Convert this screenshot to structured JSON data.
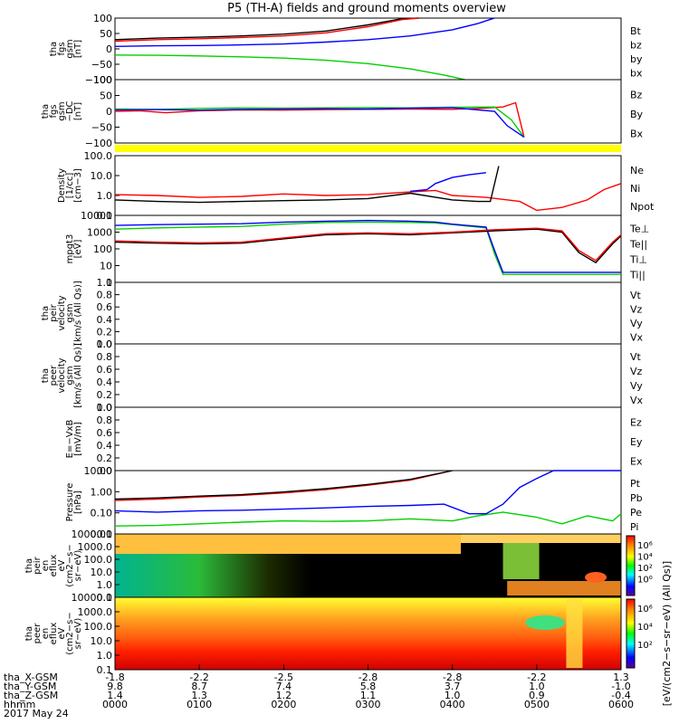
{
  "title": "P5 (TH-A) fields and ground moments overview",
  "colors": {
    "black": "#000000",
    "red": "#ff0000",
    "green": "#00d000",
    "blue": "#0000ff",
    "yellow": "#ffff00"
  },
  "chart_data": {
    "type": "line",
    "x_axis": {
      "ticks": [
        "0000",
        "0100",
        "0200",
        "0300",
        "0400",
        "0500",
        "0600"
      ],
      "rows": [
        {
          "label": "tha_X-GSM",
          "values": [
            "-1.8",
            "-2.2",
            "-2.5",
            "-2.8",
            "-2.8",
            "-2.2",
            "1.3"
          ]
        },
        {
          "label": "tha_Y-GSM",
          "values": [
            "9.8",
            "8.7",
            "7.4",
            "5.8",
            "3.7",
            "1.0",
            "-1.0"
          ]
        },
        {
          "label": "tha_Z-GSM",
          "values": [
            "1.4",
            "1.3",
            "1.2",
            "1.1",
            "1.0",
            "0.9",
            "-0.4"
          ]
        },
        {
          "label": "hhmm",
          "values": [
            "0000",
            "0100",
            "0200",
            "0300",
            "0400",
            "0500",
            "0600"
          ]
        }
      ],
      "date": "2017 May 24"
    },
    "panels": [
      {
        "id": "fgs",
        "ylabel": [
          "tha",
          "fgs",
          "gsm",
          "[nT]"
        ],
        "yticks": [
          "100",
          "50",
          "0",
          "−50",
          "−100"
        ],
        "legend": [
          "Bt",
          "bz",
          "by",
          "bx"
        ]
      },
      {
        "id": "fgs_dc",
        "ylabel": [
          "tha",
          "fgs",
          "gsm",
          "−DC",
          "[nT]"
        ],
        "yticks": [
          "100",
          "50",
          "0",
          "−50",
          "−100"
        ],
        "legend": [
          "Bz",
          "By",
          "Bx"
        ]
      },
      {
        "id": "density",
        "ylabel": [
          "Density",
          "[1/cc]",
          "[cm−3]"
        ],
        "yticks": [
          "100.0",
          "10.0",
          "1.0",
          "0.1"
        ],
        "legend": [
          "Ne",
          "Ni",
          "Npot"
        ]
      },
      {
        "id": "temp",
        "ylabel": [
          "mpgt3",
          "[eV]"
        ],
        "yticks": [
          "10000",
          "1000",
          "100",
          "10",
          "1"
        ],
        "legend": [
          "Te⊥",
          "Te||",
          "Ti⊥",
          "Ti||"
        ]
      },
      {
        "id": "peir_vel",
        "ylabel": [
          "tha",
          "peir",
          "velocity",
          "gsm",
          "[km/s (All Qs)]"
        ],
        "yticks": [
          "1.0",
          "0.8",
          "0.6",
          "0.4",
          "0.2",
          "0.0"
        ],
        "legend": [
          "Vt",
          "Vz",
          "Vy",
          "Vx"
        ]
      },
      {
        "id": "peer_vel",
        "ylabel": [
          "tha",
          "peer",
          "velocity",
          "gsm",
          "[km/s (All Qs)]"
        ],
        "yticks": [
          "1.0",
          "0.8",
          "0.6",
          "0.4",
          "0.2",
          "0.0"
        ],
        "legend": [
          "Vt",
          "Vz",
          "Vy",
          "Vx"
        ]
      },
      {
        "id": "efield",
        "ylabel": [
          "E=−VxB",
          "[mV/m]"
        ],
        "yticks": [
          "1.0",
          "0.8",
          "0.6",
          "0.4",
          "0.2",
          "0.0"
        ],
        "legend": [
          "Ez",
          "Ey",
          "Ex"
        ]
      },
      {
        "id": "pressure",
        "ylabel": [
          "Pressure",
          "[nPa]"
        ],
        "yticks": [
          "10.00",
          "1.00",
          "0.10",
          "0.01"
        ],
        "legend": [
          "Pt",
          "Pb",
          "Pe",
          "Pi"
        ]
      },
      {
        "id": "peir_spec",
        "ylabel": [
          "tha",
          "peir",
          "en",
          "eflux",
          "eV",
          "(cm2−s−",
          "sr−eV)"
        ],
        "yticks": [
          "10000.0",
          "1000.0",
          "100.0",
          "10.0",
          "1.0",
          "0.1"
        ],
        "colorbar_ticks": [
          "10⁶",
          "10⁴",
          "10²",
          "10⁰"
        ]
      },
      {
        "id": "peer_spec",
        "ylabel": [
          "tha",
          "peer",
          "en",
          "eflux",
          "eV",
          "(cm2−s−",
          "sr−eV)"
        ],
        "yticks": [
          "10000.0",
          "1000.0",
          "100.0",
          "10.0",
          "1.0",
          "0.1"
        ],
        "colorbar_ticks": [
          "10⁶",
          "10⁴",
          "10²"
        ]
      }
    ],
    "colorbar_label": "[eV/(cm2−s−sr−eV) (All Qs)]",
    "series": {
      "fgs": [
        {
          "name": "Bt",
          "color": "#000000",
          "x": [
            0,
            0.5,
            1,
            1.5,
            2,
            2.5,
            3,
            3.4,
            3.6
          ],
          "y": [
            30,
            35,
            38,
            42,
            48,
            58,
            78,
            98,
            100
          ]
        },
        {
          "name": "bz",
          "color": "#ff0000",
          "x": [
            0,
            0.5,
            1,
            1.5,
            2,
            2.5,
            3,
            3.4,
            3.6
          ],
          "y": [
            25,
            30,
            33,
            37,
            42,
            52,
            72,
            95,
            100
          ]
        },
        {
          "name": "bx",
          "color": "#0000ff",
          "x": [
            0,
            0.5,
            1,
            1.5,
            2,
            2.5,
            3,
            3.5,
            4,
            4.3,
            4.45,
            4.5
          ],
          "y": [
            8,
            10,
            11,
            13,
            16,
            22,
            30,
            42,
            62,
            82,
            96,
            100
          ]
        },
        {
          "name": "by",
          "color": "#00d000",
          "x": [
            0,
            0.5,
            1,
            1.5,
            2,
            2.5,
            3,
            3.5,
            3.9,
            4.15
          ],
          "y": [
            -20,
            -21,
            -23,
            -26,
            -30,
            -37,
            -48,
            -65,
            -85,
            -100
          ]
        }
      ],
      "fgs_dc": [
        {
          "name": "Bz",
          "color": "#ff0000",
          "x": [
            0,
            0.3,
            0.6,
            1,
            1.5,
            2,
            2.5,
            3,
            3.5,
            4,
            4.3,
            4.6,
            4.75,
            4.85
          ],
          "y": [
            -10,
            -8,
            -15,
            -8,
            -5,
            -6,
            -4,
            -3,
            -2,
            -3,
            0,
            5,
            20,
            -100
          ]
        },
        {
          "name": "By",
          "color": "#00d000",
          "x": [
            0,
            0.5,
            1,
            1.5,
            2,
            2.5,
            3,
            3.5,
            4,
            4.5,
            4.7,
            4.85
          ],
          "y": [
            -2,
            -3,
            0,
            2,
            1,
            2,
            3,
            2,
            4,
            5,
            -40,
            -100
          ]
        },
        {
          "name": "Bx",
          "color": "#0000ff",
          "x": [
            0,
            0.5,
            1,
            1.5,
            2,
            2.5,
            3,
            3.5,
            4,
            4.5,
            4.65,
            4.85
          ],
          "y": [
            -5,
            -4,
            -6,
            -3,
            -2,
            -1,
            -2,
            1,
            3,
            -10,
            -60,
            -100
          ]
        }
      ],
      "density": [
        {
          "name": "Ne",
          "color": "#ff0000",
          "x": [
            0,
            0.5,
            1,
            1.5,
            2,
            2.5,
            3,
            3.5,
            3.8,
            4,
            4.4,
            4.8,
            5,
            5.3,
            5.6,
            5.8,
            6
          ],
          "y": [
            1.1,
            1.0,
            0.8,
            0.9,
            1.2,
            1.0,
            1.1,
            1.5,
            1.8,
            1.0,
            0.8,
            0.5,
            0.18,
            0.25,
            0.6,
            2.0,
            4.0
          ]
        },
        {
          "name": "Npot",
          "color": "#0000ff",
          "x": [
            3.5,
            3.7,
            3.8,
            4,
            4.2,
            4.4
          ],
          "y": [
            1.6,
            2.0,
            4.0,
            8,
            11,
            14
          ]
        },
        {
          "name": "Ni",
          "color": "#000000",
          "x": [
            0,
            0.5,
            1,
            1.5,
            2,
            2.5,
            3,
            3.5,
            4,
            4.3,
            4.45,
            4.55
          ],
          "y": [
            0.6,
            0.5,
            0.45,
            0.5,
            0.55,
            0.6,
            0.7,
            1.3,
            0.6,
            0.5,
            0.5,
            30
          ]
        }
      ],
      "temp": [
        {
          "name": "Ti||",
          "color": "#00d000",
          "x": [
            0,
            0.5,
            1,
            1.5,
            2,
            2.5,
            3,
            3.5,
            3.8,
            4,
            4.4,
            4.5,
            4.6,
            6
          ],
          "y": [
            1500,
            1800,
            2000,
            2200,
            3000,
            3800,
            4000,
            3800,
            3500,
            2800,
            1800,
            50,
            3,
            3
          ]
        },
        {
          "name": "Ti⊥",
          "color": "#0000ff",
          "x": [
            0,
            0.5,
            1,
            1.5,
            2,
            2.5,
            3,
            3.5,
            3.8,
            4,
            4.4,
            4.5,
            4.6,
            6
          ],
          "y": [
            2500,
            2800,
            3000,
            3200,
            4000,
            4500,
            5000,
            4500,
            4000,
            3000,
            2000,
            80,
            4,
            4
          ]
        },
        {
          "name": "Te||",
          "color": "#000000",
          "x": [
            0,
            0.5,
            1,
            1.5,
            2,
            2.5,
            3,
            3.5,
            4,
            4.5,
            5,
            5.3,
            5.5,
            5.7,
            5.9,
            6
          ],
          "y": [
            250,
            220,
            200,
            220,
            400,
            700,
            800,
            700,
            900,
            1200,
            1500,
            1000,
            60,
            15,
            200,
            600
          ]
        },
        {
          "name": "Te⊥",
          "color": "#ff0000",
          "x": [
            0,
            0.5,
            1,
            1.5,
            2,
            2.5,
            3,
            3.5,
            4,
            4.5,
            5,
            5.3,
            5.5,
            5.7,
            5.9,
            6
          ],
          "y": [
            300,
            250,
            230,
            250,
            450,
            800,
            900,
            800,
            1000,
            1400,
            1700,
            1200,
            80,
            20,
            250,
            700
          ]
        }
      ],
      "pressure": [
        {
          "name": "Pe",
          "color": "#00d000",
          "x": [
            0,
            0.5,
            1,
            1.5,
            2,
            2.5,
            3,
            3.5,
            4,
            4.3,
            4.6,
            5,
            5.3,
            5.6,
            5.9,
            6
          ],
          "y": [
            0.015,
            0.016,
            0.02,
            0.025,
            0.03,
            0.028,
            0.03,
            0.04,
            0.03,
            0.06,
            0.1,
            0.05,
            0.02,
            0.06,
            0.03,
            0.08
          ]
        },
        {
          "name": "Pi",
          "color": "#0000ff",
          "x": [
            0,
            0.5,
            1,
            1.5,
            2,
            2.5,
            3,
            3.5,
            3.9,
            4.2,
            4.4,
            4.6,
            4.8,
            5,
            5.2,
            5.5,
            6
          ],
          "y": [
            0.12,
            0.1,
            0.12,
            0.13,
            0.15,
            0.18,
            0.22,
            0.25,
            0.3,
            0.08,
            0.08,
            0.3,
            3.0,
            10,
            30,
            30,
            30
          ]
        },
        {
          "name": "Pb",
          "color": "#ff0000",
          "x": [
            0,
            0.5,
            1,
            1.5,
            2,
            2.5,
            3,
            3.5,
            4
          ],
          "y": [
            0.5,
            0.6,
            0.8,
            1.0,
            1.4,
            2.2,
            4,
            8,
            30
          ]
        },
        {
          "name": "Pt",
          "color": "#000000",
          "x": [
            0,
            0.5,
            1,
            1.5,
            2,
            2.5,
            3,
            3.5,
            4
          ],
          "y": [
            0.6,
            0.7,
            0.9,
            1.1,
            1.6,
            2.5,
            4.5,
            9,
            30
          ]
        }
      ]
    }
  }
}
